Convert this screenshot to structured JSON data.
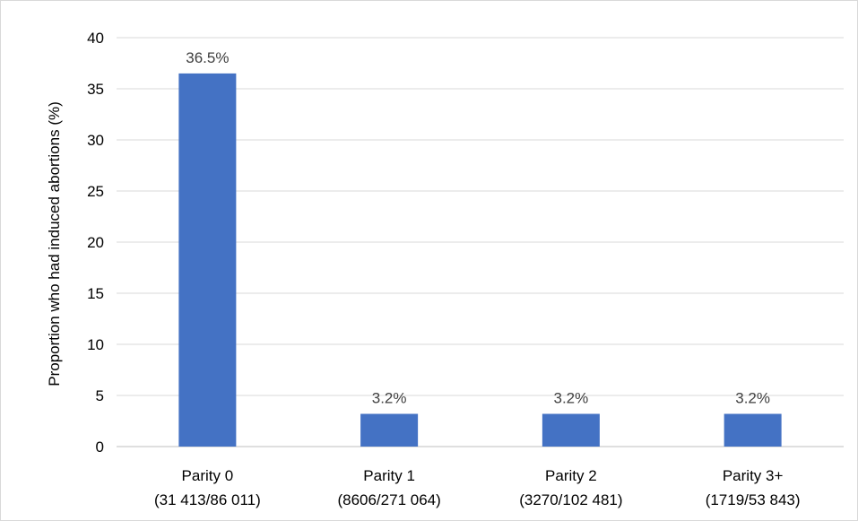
{
  "chart_data": {
    "type": "bar",
    "title": "",
    "xlabel": "",
    "ylabel": "Proportion who had induced abortions (%)",
    "ylim": [
      0,
      40
    ],
    "yticks": [
      0,
      5,
      10,
      15,
      20,
      25,
      30,
      35,
      40
    ],
    "grid": true,
    "legend": "none",
    "bar_color": "#4472C4",
    "categories": [
      {
        "line1": "Parity 0",
        "line2": "(31 413/86 011)"
      },
      {
        "line1": "Parity 1",
        "line2": "(8606/271 064)"
      },
      {
        "line1": "Parity 2",
        "line2": "(3270/102 481)"
      },
      {
        "line1": "Parity 3+",
        "line2": "(1719/53 843)"
      }
    ],
    "values": [
      36.5,
      3.2,
      3.2,
      3.2
    ],
    "data_labels": [
      "36.5%",
      "3.2%",
      "3.2%",
      "3.2%"
    ]
  }
}
